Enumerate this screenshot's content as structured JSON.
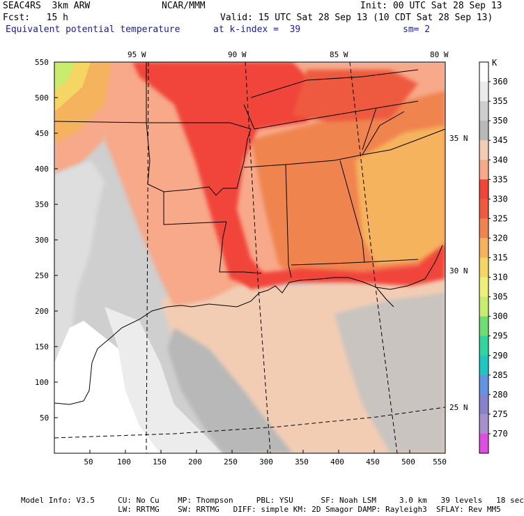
{
  "header": {
    "line1_left": "SEAC4RS  3km ARW",
    "line1_mid": "NCAR/MMM",
    "line1_right": "Init: 00 UTC Sat 28 Sep 13",
    "line2_left": "Fcst:   15 h",
    "line2_right": "Valid: 15 UTC Sat 28 Sep 13 (10 CDT Sat 28 Sep 13)",
    "line3_left": "Equivalent potential temperature",
    "line3_mid": "at k-index =  39",
    "line3_right": "sm= 2"
  },
  "map": {
    "lon_labels": [
      "95 W",
      "90 W",
      "85 W",
      "80 W"
    ],
    "lat_labels": [
      "35 N",
      "30 N",
      "25 N"
    ],
    "x_ticks": [
      "50",
      "100",
      "150",
      "200",
      "250",
      "300",
      "350",
      "400",
      "450",
      "500",
      "550"
    ],
    "y_ticks": [
      "550",
      "500",
      "450",
      "400",
      "350",
      "300",
      "250",
      "200",
      "150",
      "100",
      "50"
    ],
    "x_range": [
      0,
      550
    ],
    "y_range": [
      0,
      550
    ]
  },
  "colorbar": {
    "unit": "K",
    "levels": [
      "360",
      "355",
      "350",
      "345",
      "340",
      "335",
      "330",
      "325",
      "320",
      "315",
      "310",
      "305",
      "300",
      "295",
      "290",
      "285",
      "280",
      "275",
      "270"
    ],
    "colors": [
      "#ffffff",
      "#ececec",
      "#cdcdcd",
      "#b8b8b8",
      "#f2cdb4",
      "#f7a98a",
      "#f1443a",
      "#ee5a3f",
      "#f08450",
      "#f6b35d",
      "#f5d665",
      "#eff079",
      "#c7ec6e",
      "#6fdc74",
      "#31d69e",
      "#1fc7c2",
      "#6393e3",
      "#8882cc",
      "#a691cc",
      "#dc4ee0"
    ]
  },
  "footer": {
    "line1": "Model Info: V3.5     CU: No Cu    MP: Thompson     PBL: YSU      SF: Noah LSM     3.0 km   39 levels   18 sec",
    "line2": "                     LW: RRTMG    SW: RRTMG   DIFF: simple KM: 2D Smagor DAMP: Rayleigh3  SFLAY: Rev MM5"
  }
}
